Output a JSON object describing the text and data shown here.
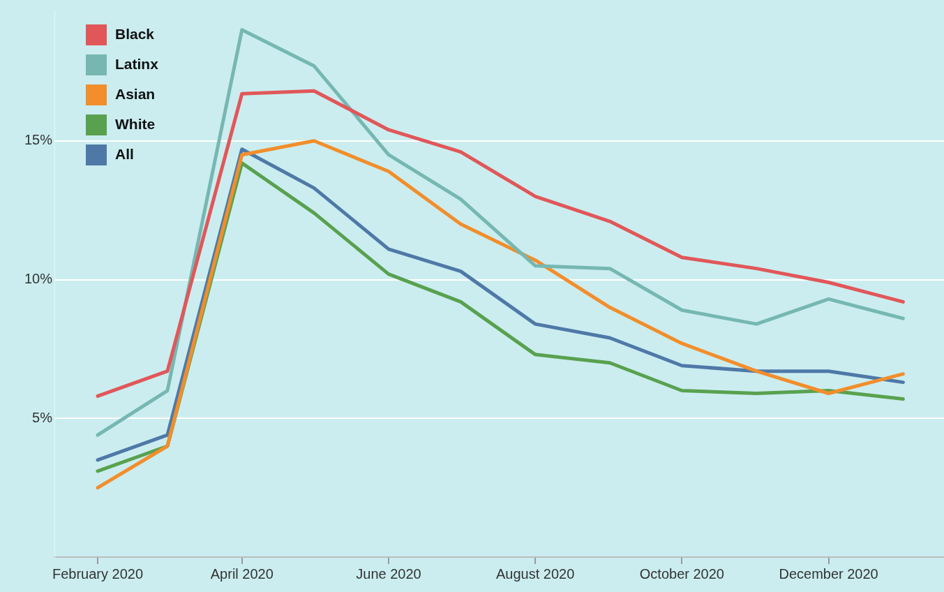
{
  "chart_data": {
    "type": "line",
    "x": [
      "2020-02",
      "2020-03",
      "2020-04",
      "2020-05",
      "2020-06",
      "2020-07",
      "2020-08",
      "2020-09",
      "2020-10",
      "2020-11",
      "2020-12",
      "2021-01"
    ],
    "series": [
      {
        "name": "Black",
        "color": "#e15759",
        "values": [
          5.8,
          6.7,
          16.7,
          16.8,
          15.4,
          14.6,
          13.0,
          12.1,
          10.8,
          10.4,
          9.9,
          9.2
        ]
      },
      {
        "name": "Latinx",
        "color": "#76b7b2",
        "values": [
          4.4,
          6.0,
          19.0,
          17.7,
          14.5,
          12.9,
          10.5,
          10.4,
          8.9,
          8.4,
          9.3,
          8.6
        ]
      },
      {
        "name": "Asian",
        "color": "#f28e2b",
        "values": [
          2.5,
          4.0,
          14.5,
          15.0,
          13.9,
          12.0,
          10.7,
          9.0,
          7.7,
          6.7,
          5.9,
          6.6
        ]
      },
      {
        "name": "White",
        "color": "#59a14f",
        "values": [
          3.1,
          4.0,
          14.2,
          12.4,
          10.2,
          9.2,
          7.3,
          7.0,
          6.0,
          5.9,
          6.0,
          5.7
        ]
      },
      {
        "name": "All",
        "color": "#4e79a7",
        "values": [
          3.5,
          4.4,
          14.7,
          13.3,
          11.1,
          10.3,
          8.4,
          7.9,
          6.9,
          6.7,
          6.7,
          6.3
        ]
      }
    ],
    "xlim": [
      "2020-01-14",
      "2021-01-18"
    ],
    "xticks": [
      {
        "value": "2020-02",
        "label": "February 2020"
      },
      {
        "value": "2020-04",
        "label": "April 2020"
      },
      {
        "value": "2020-06",
        "label": "June 2020"
      },
      {
        "value": "2020-08",
        "label": "August 2020"
      },
      {
        "value": "2020-10",
        "label": "October 2020"
      },
      {
        "value": "2020-12",
        "label": "December 2020"
      }
    ],
    "ylim": [
      0,
      19.7
    ],
    "yticks": [
      {
        "value": 5,
        "label": "5%"
      },
      {
        "value": 10,
        "label": "10%"
      },
      {
        "value": 15,
        "label": "15%"
      }
    ],
    "grid": "y",
    "legend": "top left",
    "marker": "none",
    "line_style": "solid"
  }
}
